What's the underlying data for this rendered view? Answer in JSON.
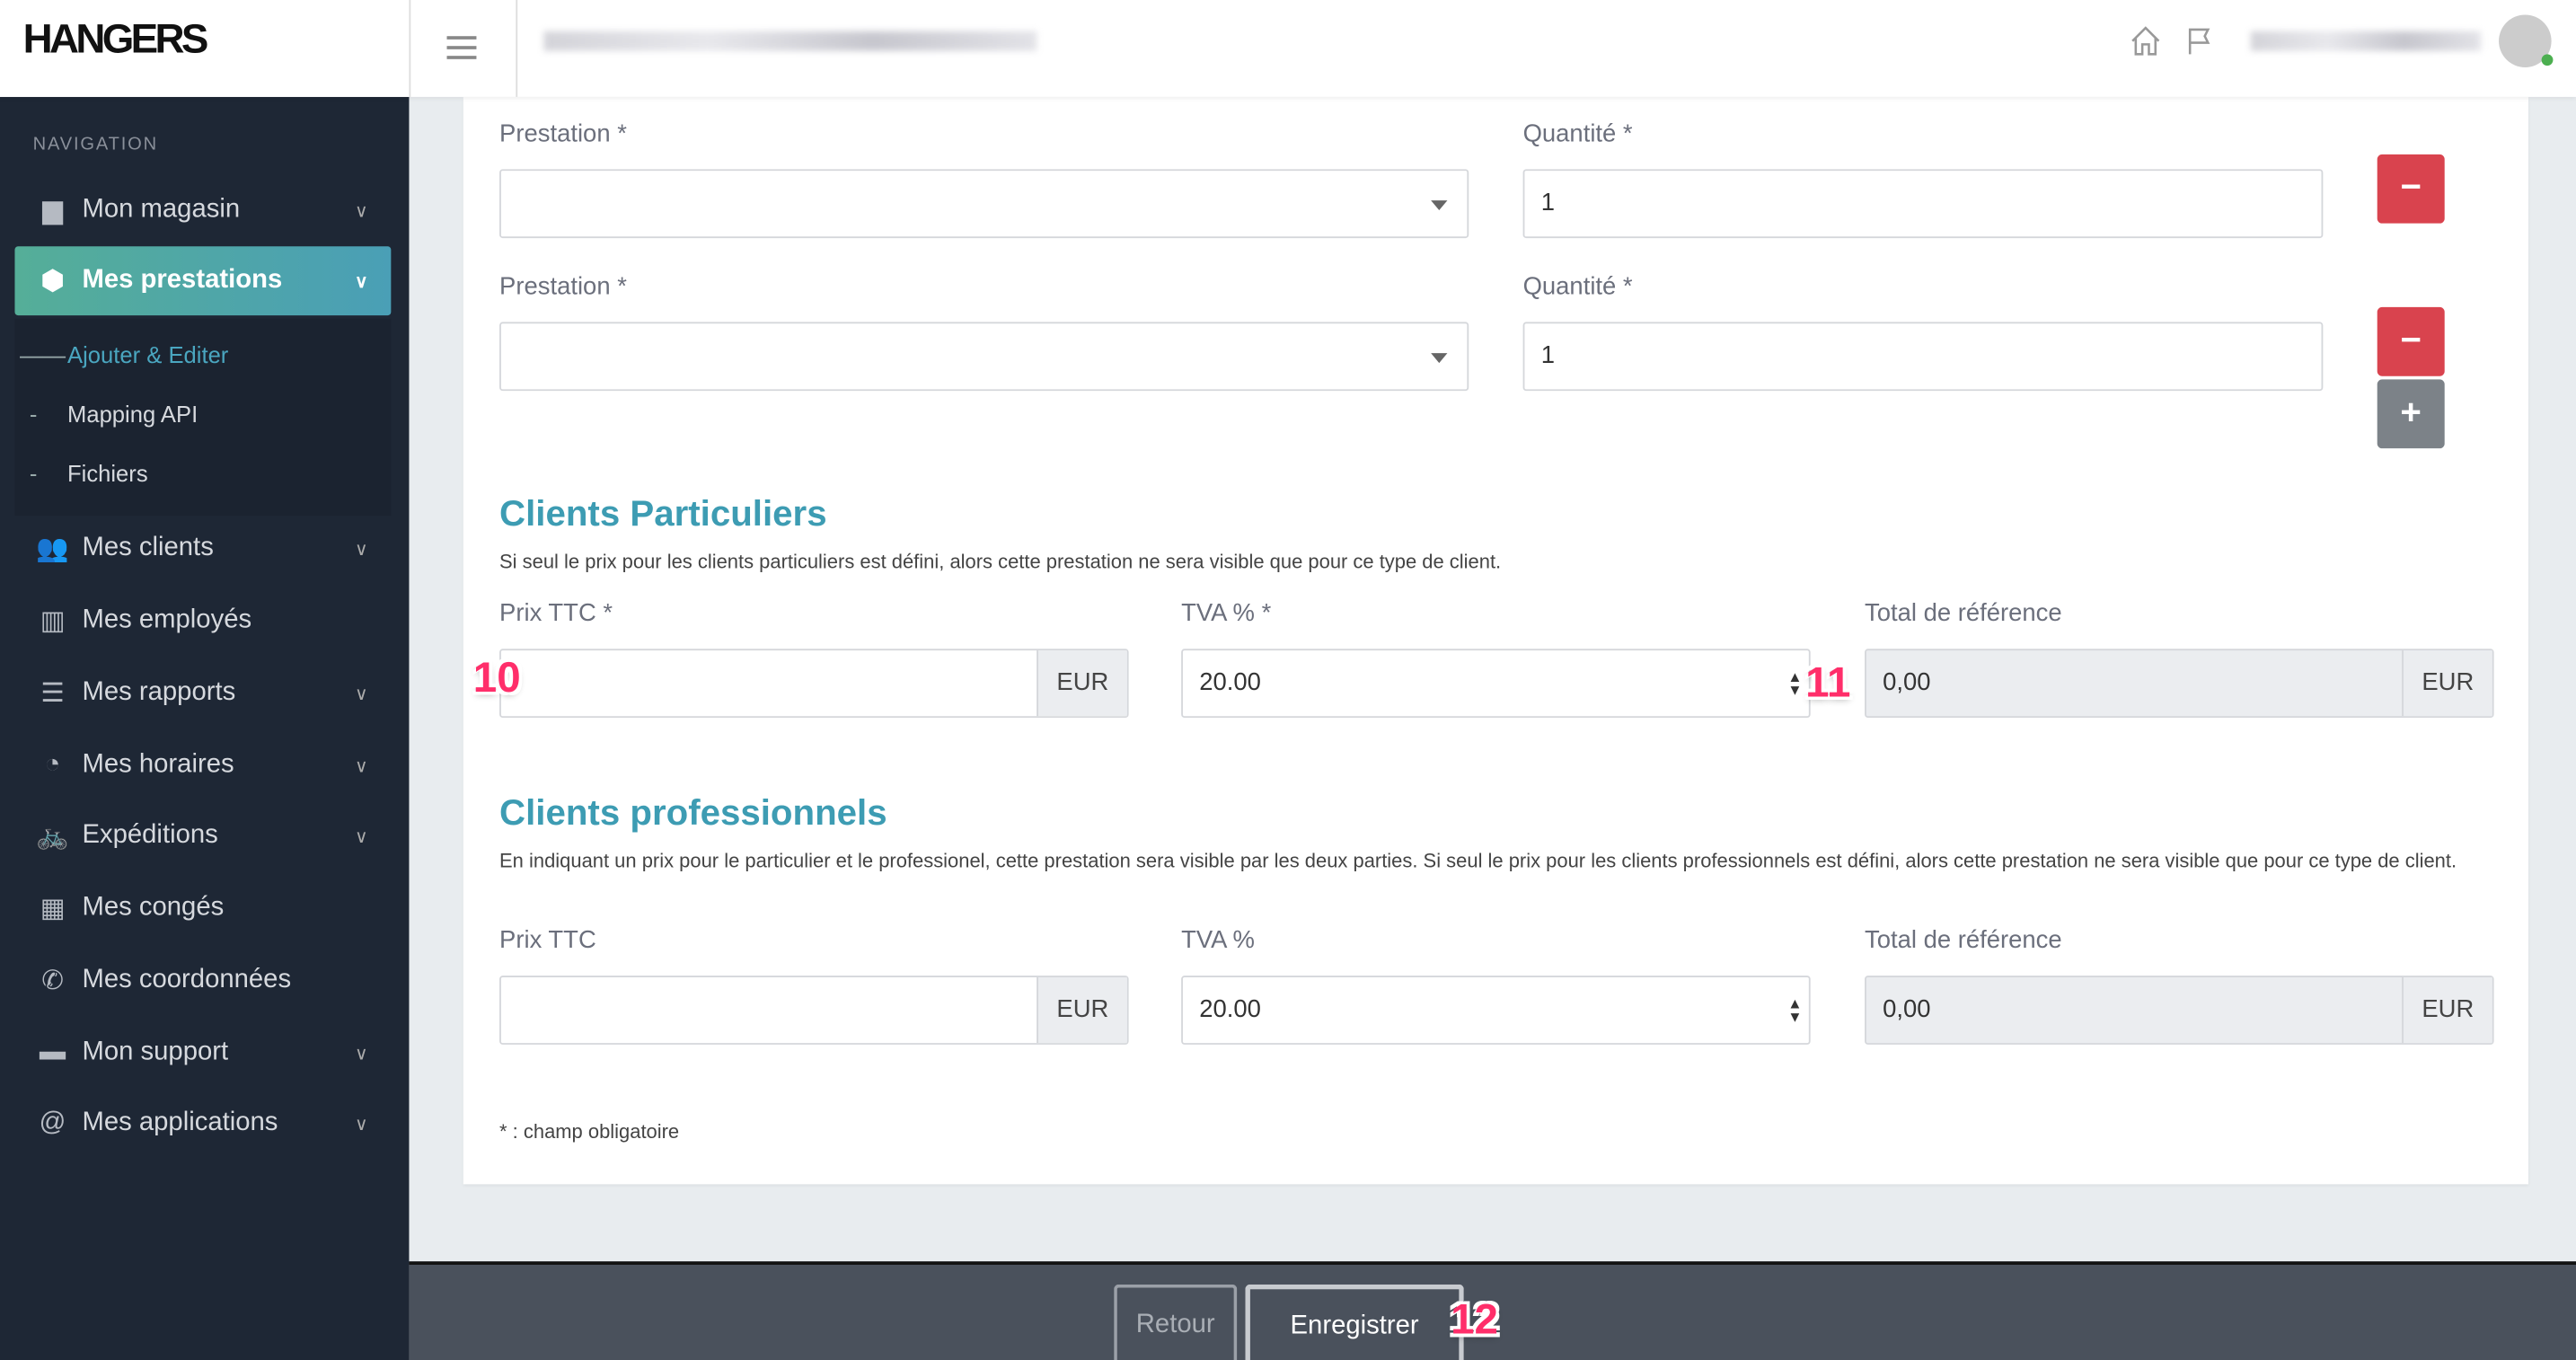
{
  "header": {
    "logo": "HANGERS",
    "icons": [
      "home-icon",
      "flag-icon",
      "avatar"
    ]
  },
  "sidebar": {
    "section_label": "NAVIGATION",
    "items": [
      {
        "label": "Mon magasin",
        "icon": "briefcase-icon",
        "chevron": true
      },
      {
        "label": "Mes prestations",
        "icon": "cube-icon",
        "chevron": true,
        "active": true
      },
      {
        "label": "Mes clients",
        "icon": "users-icon",
        "chevron": true
      },
      {
        "label": "Mes employés",
        "icon": "book-icon",
        "chevron": false
      },
      {
        "label": "Mes rapports",
        "icon": "list-icon",
        "chevron": true
      },
      {
        "label": "Mes horaires",
        "icon": "clock-icon",
        "chevron": true
      },
      {
        "label": "Expéditions",
        "icon": "bicycle-icon",
        "chevron": true
      },
      {
        "label": "Mes congés",
        "icon": "calendar-icon",
        "chevron": false
      },
      {
        "label": "Mes coordonnées",
        "icon": "phone-icon",
        "chevron": false
      },
      {
        "label": "Mon support",
        "icon": "comments-icon",
        "chevron": true
      },
      {
        "label": "Mes applications",
        "icon": "at-icon",
        "chevron": true
      }
    ],
    "subitems": [
      {
        "label": "Ajouter & Editer",
        "active": true
      },
      {
        "label": "Mapping API"
      },
      {
        "label": "Fichiers"
      }
    ]
  },
  "form": {
    "rows": [
      {
        "prestation_label": "Prestation *",
        "prestation_value": "",
        "quantite_label": "Quantité *",
        "quantite_value": "1",
        "remove": "−"
      },
      {
        "prestation_label": "Prestation *",
        "prestation_value": "",
        "quantite_label": "Quantité *",
        "quantite_value": "1",
        "remove": "−"
      }
    ],
    "add": "+",
    "particuliers": {
      "title": "Clients Particuliers",
      "help": "Si seul le prix pour les clients particuliers est défini, alors cette prestation ne sera visible que pour ce type de client.",
      "prix_label": "Prix TTC *",
      "prix_value": "",
      "currency": "EUR",
      "tva_label": "TVA % *",
      "tva_value": "20.00",
      "total_label": "Total de référence",
      "total_value": "0,00"
    },
    "professionnels": {
      "title": "Clients professionnels",
      "help": "En indiquant un prix pour le particulier et le professionel, cette prestation sera visible par les deux parties. Si seul le prix pour les clients professionnels est défini, alors cette prestation ne sera visible que pour ce type de client.",
      "prix_label": "Prix TTC",
      "prix_value": "",
      "currency": "EUR",
      "tva_label": "TVA %",
      "tva_value": "20.00",
      "total_label": "Total de référence",
      "total_value": "0,00"
    },
    "required_note": "* : champ obligatoire"
  },
  "footer": {
    "back": "Retour",
    "save": "Enregistrer"
  },
  "annotations": [
    "10",
    "11",
    "12"
  ],
  "colors": {
    "sidebar": "#1e2735",
    "accent": "#3d9cb3",
    "danger": "#d9434e",
    "footer": "#4a515c"
  }
}
